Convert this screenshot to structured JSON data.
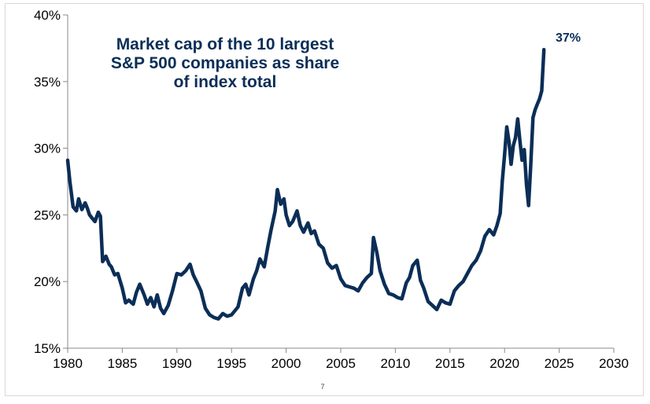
{
  "chart_data": {
    "type": "line",
    "title": "Market cap of the 10 largest S&P 500 companies as share of index total",
    "title_lines": [
      "Market cap of the 10 largest",
      "S&P 500 companies as share",
      "of index total"
    ],
    "xlabel": "",
    "ylabel": "",
    "xlim": [
      1980,
      2030
    ],
    "ylim": [
      15,
      40
    ],
    "x_ticks": [
      "1980",
      "1985",
      "1990",
      "1995",
      "2000",
      "2005",
      "2010",
      "2015",
      "2020",
      "2025",
      "2030"
    ],
    "y_ticks": [
      "15%",
      "20%",
      "25%",
      "30%",
      "35%",
      "40%"
    ],
    "grid": false,
    "legend": "none",
    "line_color": "#0b2e57",
    "end_label": "37%",
    "series": [
      {
        "x": [
          1980.0,
          1980.2,
          1980.5,
          1980.8,
          1981.0,
          1981.3,
          1981.6,
          1981.8,
          1982.0,
          1982.2,
          1982.5,
          1982.8,
          1983.0,
          1983.2,
          1983.5,
          1983.8,
          1984.0,
          1984.3,
          1984.6,
          1985.0,
          1985.3,
          1985.6,
          1986.0,
          1986.3,
          1986.6,
          1987.0,
          1987.3,
          1987.6,
          1987.9,
          1988.2,
          1988.5,
          1988.8,
          1989.2,
          1989.6,
          1990.0,
          1990.4,
          1990.8,
          1991.2,
          1991.5,
          1991.8,
          1992.2,
          1992.6,
          1993.0,
          1993.4,
          1993.8,
          1994.2,
          1994.6,
          1995.0,
          1995.3,
          1995.6,
          1996.0,
          1996.3,
          1996.6,
          1997.0,
          1997.3,
          1997.6,
          1998.0,
          1998.3,
          1998.6,
          1999.0,
          1999.2,
          1999.5,
          1999.8,
          2000.0,
          2000.3,
          2000.6,
          2001.0,
          2001.3,
          2001.6,
          2002.0,
          2002.3,
          2002.6,
          2003.0,
          2003.4,
          2003.8,
          2004.2,
          2004.6,
          2005.0,
          2005.4,
          2005.8,
          2006.2,
          2006.6,
          2007.0,
          2007.4,
          2007.8,
          2008.0,
          2008.3,
          2008.6,
          2009.0,
          2009.4,
          2009.8,
          2010.2,
          2010.6,
          2011.0,
          2011.3,
          2011.6,
          2012.0,
          2012.3,
          2012.6,
          2013.0,
          2013.4,
          2013.8,
          2014.2,
          2014.6,
          2015.0,
          2015.4,
          2015.8,
          2016.2,
          2016.6,
          2017.0,
          2017.4,
          2017.8,
          2018.2,
          2018.6,
          2019.0,
          2019.3,
          2019.6,
          2019.8,
          2020.0,
          2020.2,
          2020.4,
          2020.6,
          2020.8,
          2021.0,
          2021.2,
          2021.4,
          2021.6,
          2021.8,
          2022.0,
          2022.2,
          2022.4,
          2022.6,
          2022.8,
          2023.0,
          2023.2,
          2023.4,
          2023.6
        ],
        "y": [
          29.1,
          27.5,
          25.6,
          25.3,
          26.2,
          25.4,
          25.9,
          25.5,
          25.0,
          24.8,
          24.5,
          25.2,
          24.9,
          21.5,
          21.9,
          21.3,
          21.1,
          20.5,
          20.6,
          19.5,
          18.4,
          18.6,
          18.3,
          19.2,
          19.8,
          19.0,
          18.3,
          18.8,
          18.1,
          19.0,
          18.0,
          17.6,
          18.2,
          19.3,
          20.6,
          20.5,
          20.8,
          21.3,
          20.5,
          20.0,
          19.3,
          18.0,
          17.5,
          17.3,
          17.2,
          17.6,
          17.4,
          17.5,
          17.8,
          18.1,
          19.5,
          19.8,
          19.0,
          20.2,
          20.8,
          21.7,
          21.1,
          22.5,
          23.8,
          25.3,
          26.9,
          25.8,
          26.2,
          25.0,
          24.2,
          24.5,
          25.3,
          24.2,
          23.7,
          24.4,
          23.6,
          23.8,
          22.8,
          22.5,
          21.4,
          21.0,
          21.2,
          20.2,
          19.7,
          19.6,
          19.5,
          19.3,
          19.9,
          20.3,
          20.6,
          23.3,
          22.2,
          20.8,
          19.8,
          19.1,
          19.0,
          18.8,
          18.7,
          19.9,
          20.3,
          21.2,
          21.6,
          20.1,
          19.5,
          18.5,
          18.2,
          17.9,
          18.6,
          18.4,
          18.3,
          19.3,
          19.7,
          20.0,
          20.6,
          21.2,
          21.6,
          22.3,
          23.4,
          23.9,
          23.5,
          24.2,
          25.1,
          27.6,
          29.5,
          31.6,
          30.5,
          28.8,
          30.2,
          30.8,
          32.2,
          30.6,
          29.1,
          29.9,
          27.3,
          25.7,
          28.8,
          32.3,
          32.9,
          33.3,
          33.7,
          34.3,
          37.4
        ]
      }
    ]
  },
  "footer": {
    "page_number": "7"
  }
}
